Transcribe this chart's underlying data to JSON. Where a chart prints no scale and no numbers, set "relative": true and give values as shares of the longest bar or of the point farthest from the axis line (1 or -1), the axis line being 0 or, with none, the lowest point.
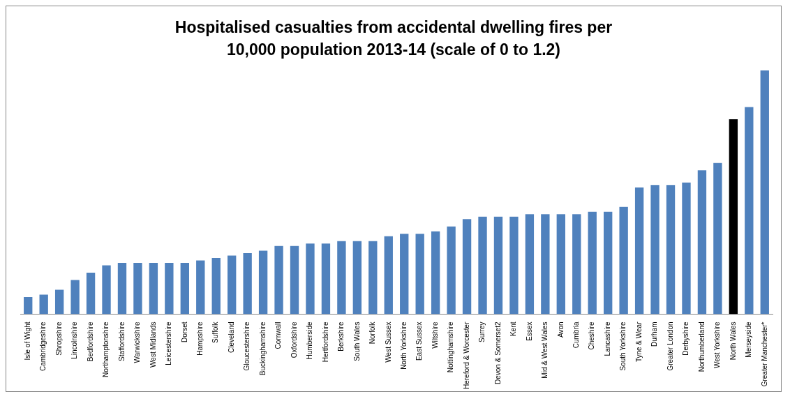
{
  "chart_data": {
    "type": "bar",
    "title": "Hospitalised casualties from accidental dwelling fires per 10,000 population 2013-14 (scale of 0 to 1.2)",
    "relative": true,
    "categories": [
      "Isle of Wight",
      "Cambridgeshire",
      "Shropshire",
      "Lincolnshire",
      "Bedfordshire",
      "Northamptonshire",
      "Staffordshire",
      "Warwickshire",
      "West Midlands",
      "Leicestershire",
      "Dorset",
      "Hampshire",
      "Suffolk",
      "Cleveland",
      "Gloucestershire",
      "Buckinghamshire",
      "Cornwall",
      "Oxfordshire",
      "Humberside",
      "Hertfordshire",
      "Berkshire",
      "South Wales",
      "Norfolk",
      "West Sussex",
      "North Yorkshire",
      "East Sussex",
      "Wiltshire",
      "Nottinghamshire",
      "Hereford & Worcester",
      "Surrey",
      "Devon & Somerset2",
      "Kent",
      "Essex",
      "Mid & West Wales",
      "Avon",
      "Cumbria",
      "Cheshire",
      "Lancashire",
      "South Yorkshire",
      "Tyne & Wear",
      "Durham",
      "Greater London",
      "Derbyshire",
      "Northumberland",
      "West Yorkshire",
      "North Wales",
      "Merseyside",
      "Greater Manchester*"
    ],
    "values": [
      0.07,
      0.08,
      0.1,
      0.14,
      0.17,
      0.2,
      0.21,
      0.21,
      0.21,
      0.21,
      0.21,
      0.22,
      0.23,
      0.24,
      0.25,
      0.26,
      0.28,
      0.28,
      0.29,
      0.29,
      0.3,
      0.3,
      0.3,
      0.32,
      0.33,
      0.33,
      0.34,
      0.36,
      0.39,
      0.4,
      0.4,
      0.4,
      0.41,
      0.41,
      0.41,
      0.41,
      0.42,
      0.42,
      0.44,
      0.52,
      0.53,
      0.53,
      0.54,
      0.59,
      0.62,
      0.8,
      0.85,
      1
    ],
    "colors": [
      "#4f81bd",
      "#4f81bd",
      "#4f81bd",
      "#4f81bd",
      "#4f81bd",
      "#4f81bd",
      "#4f81bd",
      "#4f81bd",
      "#4f81bd",
      "#4f81bd",
      "#4f81bd",
      "#4f81bd",
      "#4f81bd",
      "#4f81bd",
      "#4f81bd",
      "#4f81bd",
      "#4f81bd",
      "#4f81bd",
      "#4f81bd",
      "#4f81bd",
      "#4f81bd",
      "#4f81bd",
      "#4f81bd",
      "#4f81bd",
      "#4f81bd",
      "#4f81bd",
      "#4f81bd",
      "#4f81bd",
      "#4f81bd",
      "#4f81bd",
      "#4f81bd",
      "#4f81bd",
      "#4f81bd",
      "#4f81bd",
      "#4f81bd",
      "#4f81bd",
      "#4f81bd",
      "#4f81bd",
      "#4f81bd",
      "#4f81bd",
      "#4f81bd",
      "#4f81bd",
      "#4f81bd",
      "#4f81bd",
      "#4f81bd",
      "#000000",
      "#4f81bd",
      "#4f81bd"
    ]
  }
}
